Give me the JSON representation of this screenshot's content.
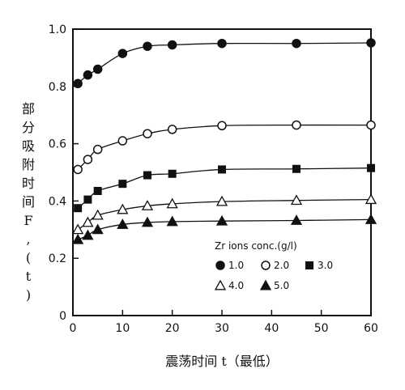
{
  "chart_data": {
    "type": "scatter",
    "xlabel": "震荡时间 t（最低）",
    "ylabel": "部分吸附时间F,(t)",
    "xlim": [
      0,
      60
    ],
    "ylim": [
      0,
      1.0
    ],
    "x_ticks": [
      "0",
      "10",
      "20",
      "30",
      "40",
      "50",
      "60"
    ],
    "y_ticks": [
      "0",
      "0.2",
      "0.4",
      "0.6",
      "0.8",
      "1.0"
    ],
    "grid": false,
    "legend": {
      "title": "Zr ions conc.(g/l)",
      "placement": "lower-right",
      "entries": [
        "1.0",
        "2.0",
        "3.0",
        "4.0",
        "5.0"
      ]
    },
    "series": [
      {
        "name": "1.0",
        "marker": "filled-circle",
        "x": [
          1,
          3,
          5,
          10,
          15,
          20,
          30,
          45,
          60
        ],
        "y": [
          0.81,
          0.84,
          0.86,
          0.915,
          0.94,
          0.945,
          0.95,
          0.95,
          0.952
        ]
      },
      {
        "name": "2.0",
        "marker": "open-circle",
        "x": [
          1,
          3,
          5,
          10,
          15,
          20,
          30,
          45,
          60
        ],
        "y": [
          0.51,
          0.545,
          0.58,
          0.61,
          0.635,
          0.65,
          0.663,
          0.665,
          0.665
        ]
      },
      {
        "name": "3.0",
        "marker": "filled-square",
        "x": [
          1,
          3,
          5,
          10,
          15,
          20,
          30,
          45,
          60
        ],
        "y": [
          0.375,
          0.405,
          0.435,
          0.46,
          0.49,
          0.495,
          0.51,
          0.512,
          0.515
        ]
      },
      {
        "name": "4.0",
        "marker": "open-triangle",
        "x": [
          1,
          3,
          5,
          10,
          15,
          20,
          30,
          45,
          60
        ],
        "y": [
          0.3,
          0.325,
          0.35,
          0.37,
          0.383,
          0.39,
          0.398,
          0.402,
          0.405
        ]
      },
      {
        "name": "5.0",
        "marker": "filled-triangle",
        "x": [
          1,
          3,
          5,
          10,
          15,
          20,
          30,
          45,
          60
        ],
        "y": [
          0.265,
          0.28,
          0.3,
          0.318,
          0.325,
          0.328,
          0.33,
          0.332,
          0.335
        ]
      }
    ]
  }
}
